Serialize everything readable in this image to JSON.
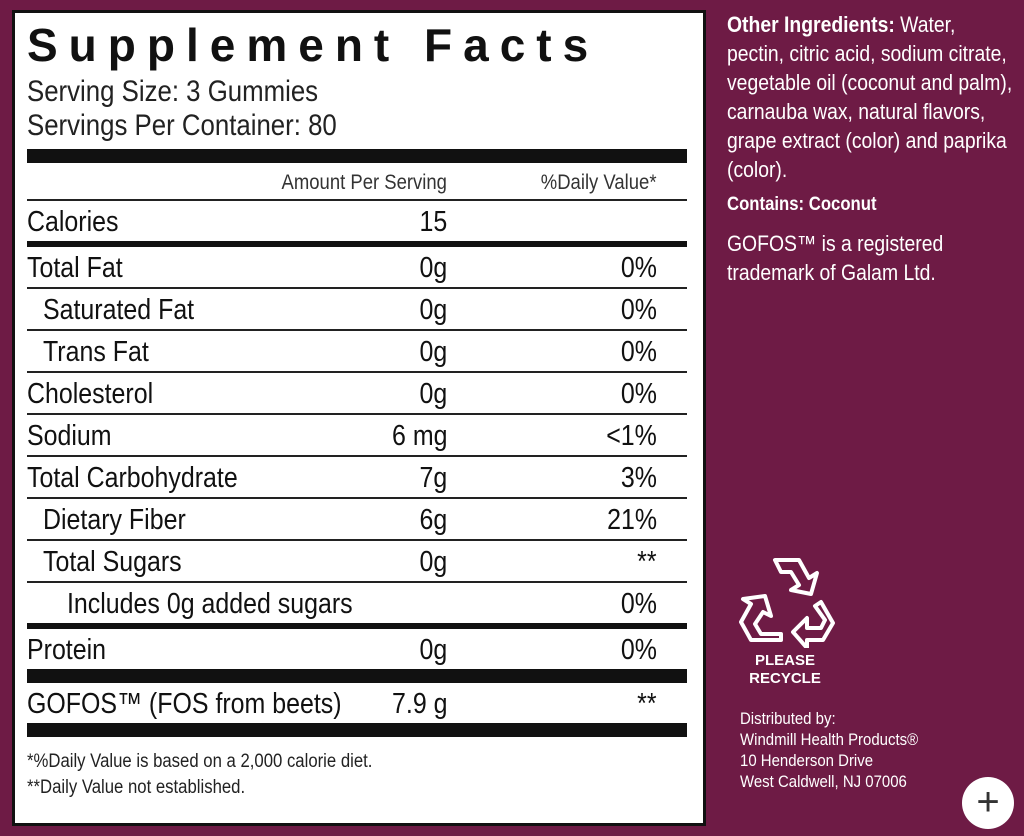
{
  "facts": {
    "title": "Supplement Facts",
    "serving_size": "Serving Size: 3 Gummies",
    "servings_per_container": "Servings Per Container: 80",
    "col_amount": "Amount Per Serving",
    "col_dv": "%Daily Value*",
    "calories": {
      "label": "Calories",
      "amount": "15"
    },
    "rows": [
      {
        "name": "Total Fat",
        "amount": "0g",
        "dv": "0%"
      },
      {
        "name": "Saturated Fat",
        "amount": "0g",
        "dv": "0%"
      },
      {
        "name": "Trans Fat",
        "amount": "0g",
        "dv": "0%"
      },
      {
        "name": "Cholesterol",
        "amount": "0g",
        "dv": "0%"
      },
      {
        "name": "Sodium",
        "amount": "6 mg",
        "dv": "<1%"
      },
      {
        "name": "Total Carbohydrate",
        "amount": "7g",
        "dv": "3%"
      },
      {
        "name": "Dietary Fiber",
        "amount": "6g",
        "dv": "21%"
      },
      {
        "name": "Total Sugars",
        "amount": "0g",
        "dv": "**"
      },
      {
        "name": "Includes 0g added sugars",
        "amount": "",
        "dv": "0%"
      },
      {
        "name": "Protein",
        "amount": "0g",
        "dv": "0%"
      }
    ],
    "gofos": {
      "name": "GOFOS™ (FOS from beets)",
      "amount": "7.9 g",
      "dv": "**"
    },
    "footnote1": "*%Daily Value is based on a 2,000 calorie diet.",
    "footnote2": "**Daily Value not established."
  },
  "side": {
    "ingredients_label": "Other Ingredients:",
    "ingredients_text": " Water, pectin, citric acid, sodium citrate, vegetable oil (coconut and palm), carnauba wax, natural flavors, grape extract (color) and paprika (color).",
    "contains": "Contains: Coconut",
    "trademark": "GOFOS™ is a registered trademark of Galam Ltd.",
    "recycle_line1": "PLEASE",
    "recycle_line2": "RECYCLE",
    "dist_line1": "Distributed by:",
    "dist_line2": "Windmill Health Products®",
    "dist_line3": "10 Henderson Drive",
    "dist_line4": "West Caldwell, NJ  07006"
  },
  "zoom_button": "+",
  "colors": {
    "panel": "#6e1b45",
    "label_bg": "#ffffff",
    "rules": "#111111"
  }
}
